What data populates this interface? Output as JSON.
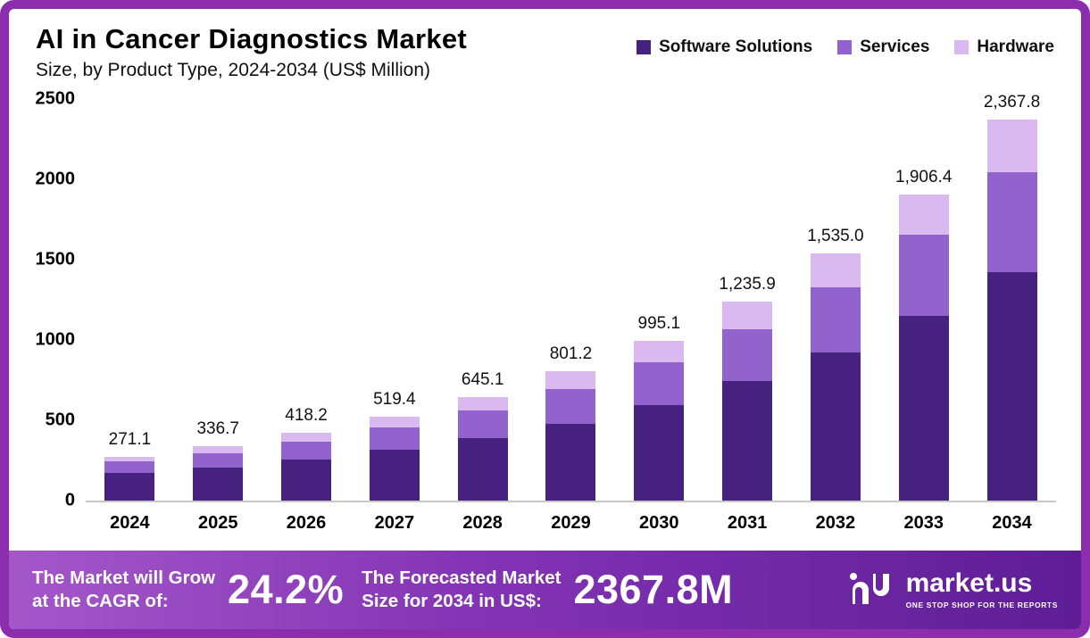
{
  "header": {
    "title": "AI in Cancer Diagnostics Market",
    "subtitle": "Size, by Product Type, 2024-2034 (US$ Million)"
  },
  "legend": {
    "items": [
      {
        "label": "Software Solutions",
        "color": "#46217f"
      },
      {
        "label": "Services",
        "color": "#9263cc"
      },
      {
        "label": "Hardware",
        "color": "#d9b9f0"
      }
    ]
  },
  "chart_data": {
    "type": "bar",
    "stacked": true,
    "title": "AI in Cancer Diagnostics Market Size, by Product Type, 2024-2034 (US$ Million)",
    "categories": [
      "2024",
      "2025",
      "2026",
      "2027",
      "2028",
      "2029",
      "2030",
      "2031",
      "2032",
      "2033",
      "2034"
    ],
    "series": [
      {
        "name": "Software Solutions",
        "color": "#46217f",
        "values": [
          170,
          205,
          252,
          312,
          388,
          478,
          592,
          740,
          920,
          1148,
          1420
        ]
      },
      {
        "name": "Services",
        "color": "#9263cc",
        "values": [
          70,
          90,
          113,
          139,
          170,
          212,
          266,
          327,
          405,
          505,
          625
        ]
      },
      {
        "name": "Hardware",
        "color": "#d9b9f0",
        "values": [
          31.1,
          41.7,
          53.2,
          68.4,
          87.1,
          111.2,
          137.1,
          168.9,
          210.0,
          253.4,
          322.8
        ]
      }
    ],
    "totals": [
      271.1,
      336.7,
      418.2,
      519.4,
      645.1,
      801.2,
      995.1,
      1235.9,
      1535.0,
      1906.4,
      2367.8
    ],
    "total_labels": [
      "271.1",
      "336.7",
      "418.2",
      "519.4",
      "645.1",
      "801.2",
      "995.1",
      "1,235.9",
      "1,535.0",
      "1,906.4",
      "2,367.8"
    ],
    "xlabel": "",
    "ylabel": "",
    "ylim": [
      0,
      2500
    ],
    "yticks": [
      0,
      500,
      1000,
      1500,
      2000,
      2500
    ],
    "grid": false,
    "legend_position": "top-right"
  },
  "footer": {
    "cagr_text_line1": "The Market will Grow",
    "cagr_text_line2": "at the CAGR of:",
    "cagr_value": "24.2%",
    "forecast_text_line1": "The Forecasted Market",
    "forecast_text_line2": "Size for 2034 in US$:",
    "forecast_value": "2367.8M",
    "brand": "market.us",
    "tagline": "ONE STOP SHOP FOR THE REPORTS"
  }
}
